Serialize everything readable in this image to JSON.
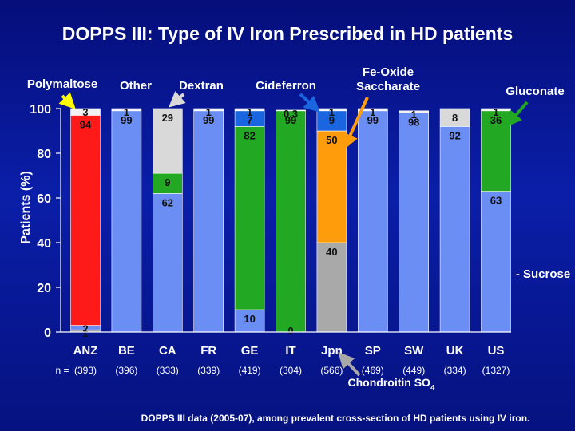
{
  "chart_data": {
    "type": "bar",
    "stacked": true,
    "title": "DOPPS III: Type of IV Iron Prescribed in HD patients",
    "ylabel": "Patients (%)",
    "ylim": [
      0,
      100
    ],
    "yticks": [
      "0",
      "20",
      "40",
      "60",
      "80",
      "100"
    ],
    "categories": [
      "ANZ",
      "BE",
      "CA",
      "FR",
      "GE",
      "IT",
      "Jpn",
      "SP",
      "SW",
      "UK",
      "US"
    ],
    "n_prefix": "n =",
    "n_labels": [
      "(393)",
      "(396)",
      "(333)",
      "(339)",
      "(419)",
      "(304)",
      "(566)",
      "(469)",
      "(449)",
      "(334)",
      "(1327)"
    ],
    "series": [
      {
        "name": "Chondroitin SO4",
        "color": "#a9a9a9",
        "values": [
          1,
          0,
          0,
          0,
          0,
          0,
          40,
          0,
          0,
          0,
          0
        ],
        "labels": [
          "1",
          "",
          "",
          "",
          "",
          "",
          "40",
          "",
          "",
          "",
          ""
        ]
      },
      {
        "name": "Sucrose",
        "color": "#6b8ef5",
        "values": [
          2,
          99,
          62,
          99,
          10,
          0,
          0,
          99,
          98,
          92,
          63
        ],
        "labels": [
          "2",
          "99",
          "62",
          "99",
          "10",
          "0",
          "",
          "99",
          "98",
          "92",
          "63"
        ]
      },
      {
        "name": "Gluconate",
        "color": "#22a822",
        "values": [
          0,
          0,
          9,
          0,
          82,
          99,
          0,
          0,
          0,
          0,
          36
        ],
        "labels": [
          "",
          "",
          "9",
          "",
          "82",
          "99",
          "",
          "",
          "",
          "",
          "36"
        ]
      },
      {
        "name": "Fe-Oxide Saccharate",
        "color": "#ff9c0c",
        "values": [
          0,
          0,
          0,
          0,
          0,
          0,
          50,
          0,
          0,
          0,
          0
        ],
        "labels": [
          "",
          "",
          "",
          "",
          "",
          "",
          "50",
          "",
          "",
          "",
          ""
        ]
      },
      {
        "name": "Cideferron",
        "color": "#1a66e0",
        "values": [
          0,
          0,
          0,
          0,
          7,
          0,
          9,
          0,
          0,
          0,
          0
        ],
        "labels": [
          "",
          "",
          "",
          "",
          "7",
          "",
          "9",
          "",
          "",
          "",
          ""
        ]
      },
      {
        "name": "Dextran",
        "color": "#d9d9d9",
        "values": [
          0,
          0,
          29,
          0,
          0,
          0,
          0,
          0,
          0,
          8,
          0
        ],
        "labels": [
          "",
          "",
          "29",
          "",
          "",
          "",
          "",
          "",
          "",
          "8",
          ""
        ]
      },
      {
        "name": "Polymaltose",
        "color": "#ff1a1a",
        "values": [
          94,
          0,
          0,
          0,
          0,
          0,
          0,
          0,
          0,
          0,
          0
        ],
        "labels": [
          "94",
          "",
          "",
          "",
          "",
          "",
          "",
          "",
          "",
          "",
          ""
        ]
      },
      {
        "name": "Other",
        "color": "#f2f2f2",
        "values": [
          3,
          1,
          0,
          1,
          1,
          0.3,
          1,
          1,
          1,
          0,
          1
        ],
        "labels": [
          "3",
          "1",
          "",
          "1",
          "1",
          "0.3",
          "1",
          "1",
          "1",
          "",
          "1"
        ]
      }
    ],
    "legend_labels": {
      "polymaltose": "Polymaltose",
      "other": "Other",
      "dextran": "Dextran",
      "cideferron": "Cideferron",
      "fe_oxide_1": "Fe-Oxide",
      "fe_oxide_2": "Saccharate",
      "gluconate": "Gluconate",
      "sucrose": "- Sucrose",
      "chondroitin": "Chondroitin SO",
      "chondroitin_sub": "4"
    },
    "footnote": "DOPPS III data (2005-07), among prevalent cross-section of HD patients using IV iron."
  }
}
